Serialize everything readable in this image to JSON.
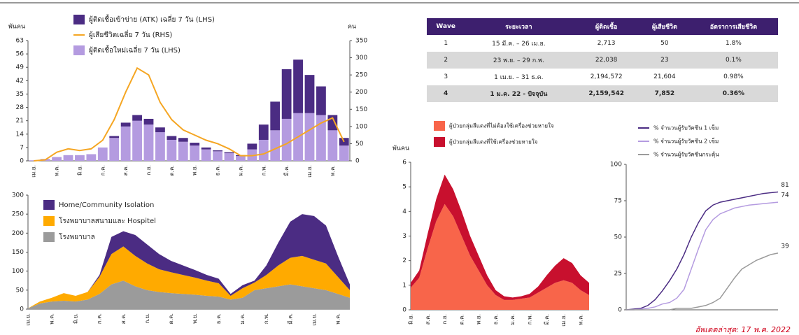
{
  "chart_data": [
    {
      "type": "bar",
      "y_label": "พันคน",
      "y2_label": "คน",
      "legend_reversed": true,
      "categories": [
        "เม.ย.",
        null,
        "พ.ค.",
        null,
        "มิ.ย.",
        null,
        "ก.ค.",
        null,
        "ส.ค.",
        null,
        "ก.ย.",
        null,
        "ต.ค.",
        null,
        "พ.ย.",
        null,
        "ธ.ค.",
        null,
        "ม.ค.",
        null,
        "ก.พ.",
        null,
        "มี.ค.",
        null,
        "เม.ย.",
        null,
        "พ.ค.",
        null
      ],
      "series": [
        {
          "name": "ผู้ติดเชื้อใหม่เฉลี่ย 7 วัน (LHS)",
          "color": "#b49be0",
          "values": [
            0.3,
            1,
            2,
            3,
            3,
            3.5,
            7,
            12,
            18,
            21,
            19,
            15,
            11,
            10,
            8,
            6,
            5,
            4,
            2.5,
            6,
            11,
            16,
            22,
            25,
            25,
            24,
            16,
            8
          ]
        },
        {
          "name": "ผู้เสียชีวิตเฉลี่ย 7 วัน (RHS)",
          "color": "#f5a623",
          "axis": "y2",
          "values": [
            0,
            3,
            25,
            35,
            30,
            35,
            60,
            120,
            200,
            270,
            250,
            170,
            120,
            90,
            75,
            60,
            50,
            35,
            15,
            15,
            20,
            35,
            50,
            70,
            90,
            110,
            125,
            55
          ]
        },
        {
          "name": "ผู้ติดเชื้อเข้าข่าย (ATK) เฉลี่ย 7 วัน (LHS)",
          "color": "#4b2c83",
          "values": [
            0,
            0,
            0,
            0,
            0,
            0,
            0,
            1,
            2,
            3,
            3,
            2.5,
            2,
            2,
            1.5,
            1,
            0.5,
            0.5,
            0.5,
            3,
            8,
            15,
            26,
            28,
            20,
            15,
            8,
            4
          ]
        }
      ],
      "ylim": [
        0,
        63
      ],
      "yticks": [
        0,
        7,
        14,
        21,
        28,
        35,
        42,
        49,
        56,
        63
      ],
      "y2lim": [
        0,
        350
      ],
      "y2ticks": [
        0,
        50,
        100,
        150,
        200,
        250,
        300,
        350
      ]
    },
    {
      "type": "area",
      "legend_reversed": true,
      "categories": [
        "เม.ย.",
        null,
        "พ.ค.",
        null,
        "มิ.ย.",
        null,
        "ก.ค.",
        null,
        "ส.ค.",
        null,
        "ก.ย.",
        null,
        "ต.ค.",
        null,
        "พ.ย.",
        null,
        "ธ.ค.",
        null,
        "ม.ค.",
        null,
        "ก.พ.",
        null,
        "มี.ค.",
        null,
        "เม.ย.",
        null,
        "พ.ค.",
        null
      ],
      "series": [
        {
          "name": "โรงพยาบาล",
          "color": "#9b9b9b",
          "values": [
            2,
            15,
            20,
            22,
            20,
            25,
            40,
            65,
            75,
            60,
            50,
            45,
            42,
            40,
            38,
            35,
            33,
            25,
            30,
            50,
            55,
            60,
            65,
            60,
            55,
            50,
            40,
            30
          ]
        },
        {
          "name": "โรงพยาบาลสนามและ Hospitel",
          "color": "#ffaa00",
          "values": [
            0,
            5,
            10,
            20,
            15,
            20,
            45,
            80,
            90,
            80,
            70,
            60,
            55,
            50,
            45,
            40,
            35,
            10,
            25,
            20,
            35,
            55,
            70,
            80,
            75,
            70,
            45,
            20
          ]
        },
        {
          "name": "Home/Community Isolation",
          "color": "#4b2c83",
          "values": [
            0,
            0,
            0,
            0,
            0,
            0,
            5,
            45,
            40,
            55,
            50,
            40,
            30,
            25,
            20,
            15,
            12,
            5,
            8,
            5,
            25,
            60,
            95,
            110,
            115,
            100,
            55,
            15
          ]
        }
      ],
      "ylim": [
        0,
        300
      ],
      "yticks": [
        0,
        50,
        100,
        150,
        200,
        250,
        300
      ]
    },
    {
      "type": "area",
      "y_label": "พันคน",
      "categories": [
        "มิ.ย.",
        null,
        "ส.ค.",
        null,
        "ก.ย.",
        null,
        "ต.ค.",
        null,
        "พ.ย.",
        null,
        "ธ.ค.",
        null,
        "ม.ค.",
        null,
        "ก.พ.",
        null,
        "มี.ค.",
        null,
        "เม.ย.",
        null,
        "พ.ค.",
        null
      ],
      "series": [
        {
          "name": "ผู้ป่วยกลุ่มสีแดงที่ไม่ต้องใช้เครื่องช่วยหายใจ",
          "color": "#f8654a",
          "values": [
            0.9,
            1.3,
            2.5,
            3.6,
            4.3,
            3.8,
            3.0,
            2.2,
            1.6,
            1.0,
            0.6,
            0.4,
            0.4,
            0.45,
            0.5,
            0.7,
            0.9,
            1.1,
            1.2,
            1.1,
            0.8,
            0.6
          ]
        },
        {
          "name": "ผู้ป่วยกลุ่มสีแดงที่ใช้เครื่องช่วยหายใจ",
          "color": "#c8102e",
          "values": [
            0.2,
            0.3,
            0.6,
            0.9,
            1.2,
            1.1,
            1.0,
            0.8,
            0.6,
            0.4,
            0.2,
            0.15,
            0.1,
            0.1,
            0.15,
            0.25,
            0.5,
            0.7,
            0.9,
            0.8,
            0.6,
            0.5
          ]
        }
      ],
      "ylim": [
        0,
        6
      ],
      "yticks": [
        0,
        1,
        2,
        3,
        4,
        5,
        6
      ]
    },
    {
      "type": "line",
      "end_labels": true,
      "series": [
        {
          "name": "% จำนวนผู้รับวัคซีน 1 เข็ม",
          "color": "#4b2c83",
          "values": [
            0,
            0.5,
            1,
            3,
            7,
            13,
            20,
            28,
            38,
            50,
            60,
            68,
            72,
            74,
            75,
            76,
            77,
            78,
            79,
            80,
            80.5,
            81
          ]
        },
        {
          "name": "% จำนวนผู้รับวัคซีน 2 เข็ม",
          "color": "#b49be0",
          "values": [
            0,
            0,
            0.5,
            1,
            2,
            4,
            5,
            8,
            14,
            28,
            42,
            55,
            62,
            66,
            68,
            70,
            71,
            72,
            72.5,
            73,
            73.5,
            74
          ]
        },
        {
          "name": "% จำนวนผู้รับวัคซีนกระตุ้น",
          "color": "#9b9b9b",
          "values": [
            0,
            0,
            0,
            0,
            0,
            0,
            0,
            1,
            1,
            1,
            2,
            3,
            5,
            8,
            15,
            22,
            28,
            31,
            34,
            36,
            38,
            39
          ]
        }
      ],
      "ylim": [
        0,
        100
      ],
      "yticks": [
        0,
        25,
        50,
        75,
        100
      ]
    }
  ],
  "table": {
    "header": [
      "Wave",
      "ระยะเวลา",
      "ผู้ติดเชื้อ",
      "ผู้เสียชีวิต",
      "อัตราการเสียชีวิต"
    ],
    "rows": [
      [
        "1",
        "15 มี.ค. – 26 เม.ย.",
        "2,713",
        "50",
        "1.8%"
      ],
      [
        "2",
        "23 พ.ย. – 29 ก.พ.",
        "22,038",
        "23",
        "0.1%"
      ],
      [
        "3",
        "1 เม.ย. – 31 ธ.ค.",
        "2,194,572",
        "21,604",
        "0.98%"
      ],
      [
        "4",
        "1 ม.ค. 22 - ปัจจุบัน",
        "2,159,542",
        "7,852",
        "0.36%"
      ]
    ]
  },
  "footer": "อัพเดตล่าสุด:  17 พ.ค. 2022"
}
